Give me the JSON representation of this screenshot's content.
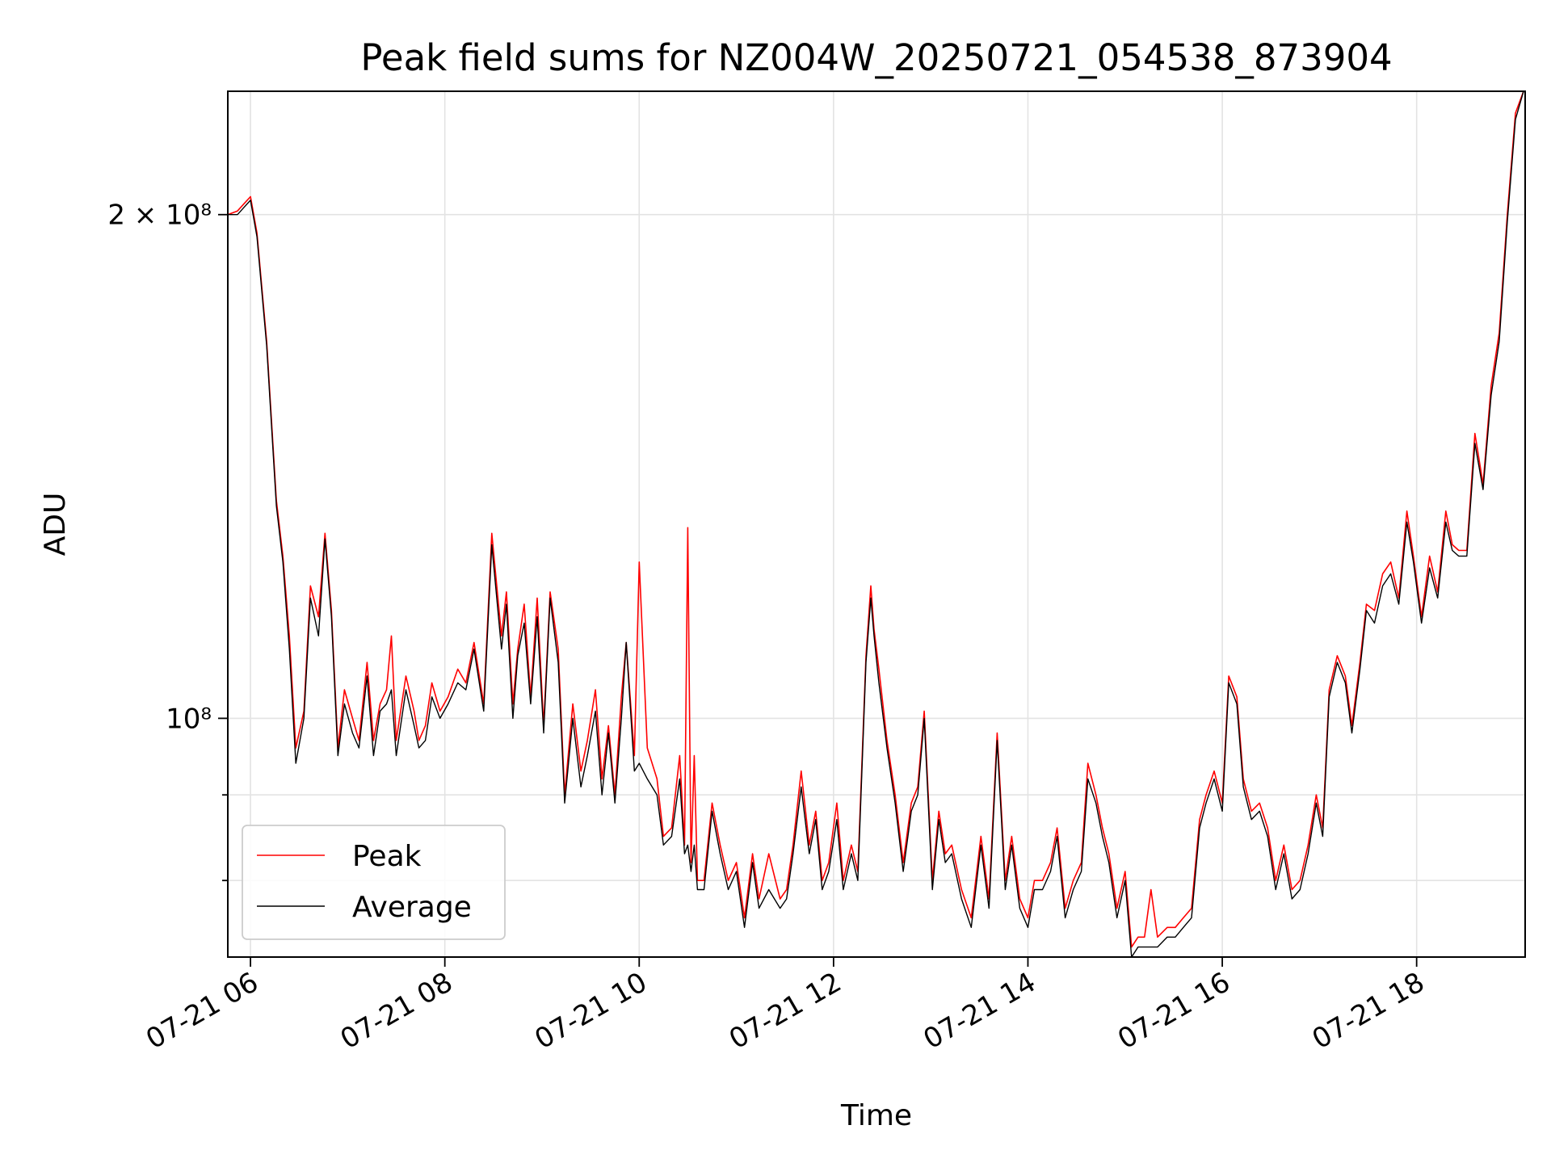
{
  "chart_data": {
    "type": "line",
    "title": "Peak field sums for NZ004W_20250721_054538_873904",
    "xlabel": "Time",
    "ylabel": "ADU",
    "yscale": "log",
    "ylim": [
      72000000,
      237000000
    ],
    "xlim": [
      "2025-07-21 05:46",
      "2025-07-21 19:07"
    ],
    "grid": true,
    "legend_position": "lower-left",
    "x_ticks": [
      "07-21 06",
      "07-21 08",
      "07-21 10",
      "07-21 12",
      "07-21 14",
      "07-21 16",
      "07-21 18"
    ],
    "y_ticks": [
      {
        "value": 200000000,
        "label": "2 × 10⁸"
      },
      {
        "value": 100000000,
        "label": "10⁸"
      }
    ],
    "y_minor_ticks": [
      60000000,
      70000000,
      80000000,
      90000000
    ],
    "series": [
      {
        "name": "Peak",
        "color": "#ff0000",
        "x": [
          "2025-07-21 05:46",
          "2025-07-21 05:52",
          "2025-07-21 05:56",
          "2025-07-21 06:00",
          "2025-07-21 06:04",
          "2025-07-21 06:10",
          "2025-07-21 06:16",
          "2025-07-21 06:20",
          "2025-07-21 06:24",
          "2025-07-21 06:28",
          "2025-07-21 06:33",
          "2025-07-21 06:37",
          "2025-07-21 06:42",
          "2025-07-21 06:46",
          "2025-07-21 06:50",
          "2025-07-21 06:54",
          "2025-07-21 06:58",
          "2025-07-21 07:03",
          "2025-07-21 07:07",
          "2025-07-21 07:12",
          "2025-07-21 07:16",
          "2025-07-21 07:20",
          "2025-07-21 07:24",
          "2025-07-21 07:27",
          "2025-07-21 07:30",
          "2025-07-21 07:36",
          "2025-07-21 07:41",
          "2025-07-21 07:44",
          "2025-07-21 07:48",
          "2025-07-21 07:52",
          "2025-07-21 07:57",
          "2025-07-21 08:02",
          "2025-07-21 08:08",
          "2025-07-21 08:13",
          "2025-07-21 08:18",
          "2025-07-21 08:24",
          "2025-07-21 08:29",
          "2025-07-21 08:35",
          "2025-07-21 08:38",
          "2025-07-21 08:42",
          "2025-07-21 08:45",
          "2025-07-21 08:49",
          "2025-07-21 08:53",
          "2025-07-21 08:57",
          "2025-07-21 09:01",
          "2025-07-21 09:05",
          "2025-07-21 09:10",
          "2025-07-21 09:14",
          "2025-07-21 09:19",
          "2025-07-21 09:24",
          "2025-07-21 09:28",
          "2025-07-21 09:33",
          "2025-07-21 09:37",
          "2025-07-21 09:41",
          "2025-07-21 09:45",
          "2025-07-21 09:49",
          "2025-07-21 09:52",
          "2025-07-21 09:57",
          "2025-07-21 10:00",
          "2025-07-21 10:05",
          "2025-07-21 10:11",
          "2025-07-21 10:15",
          "2025-07-21 10:20",
          "2025-07-21 10:25",
          "2025-07-21 10:28",
          "2025-07-21 10:30",
          "2025-07-21 10:32",
          "2025-07-21 10:34",
          "2025-07-21 10:36",
          "2025-07-21 10:40",
          "2025-07-21 10:45",
          "2025-07-21 10:50",
          "2025-07-21 10:55",
          "2025-07-21 11:00",
          "2025-07-21 11:05",
          "2025-07-21 11:10",
          "2025-07-21 11:14",
          "2025-07-21 11:20",
          "2025-07-21 11:27",
          "2025-07-21 11:31",
          "2025-07-21 11:35",
          "2025-07-21 11:40",
          "2025-07-21 11:45",
          "2025-07-21 11:49",
          "2025-07-21 11:53",
          "2025-07-21 11:57",
          "2025-07-21 12:02",
          "2025-07-21 12:06",
          "2025-07-21 12:11",
          "2025-07-21 12:15",
          "2025-07-21 12:20",
          "2025-07-21 12:23",
          "2025-07-21 12:25",
          "2025-07-21 12:28",
          "2025-07-21 12:33",
          "2025-07-21 12:38",
          "2025-07-21 12:43",
          "2025-07-21 12:48",
          "2025-07-21 12:52",
          "2025-07-21 12:56",
          "2025-07-21 13:01",
          "2025-07-21 13:05",
          "2025-07-21 13:09",
          "2025-07-21 13:13",
          "2025-07-21 13:19",
          "2025-07-21 13:25",
          "2025-07-21 13:31",
          "2025-07-21 13:36",
          "2025-07-21 13:41",
          "2025-07-21 13:46",
          "2025-07-21 13:50",
          "2025-07-21 13:55",
          "2025-07-21 14:00",
          "2025-07-21 14:04",
          "2025-07-21 14:09",
          "2025-07-21 14:14",
          "2025-07-21 14:18",
          "2025-07-21 14:23",
          "2025-07-21 14:28",
          "2025-07-21 14:33",
          "2025-07-21 14:37",
          "2025-07-21 14:42",
          "2025-07-21 14:46",
          "2025-07-21 14:50",
          "2025-07-21 14:55",
          "2025-07-21 15:00",
          "2025-07-21 15:04",
          "2025-07-21 15:08",
          "2025-07-21 15:12",
          "2025-07-21 15:16",
          "2025-07-21 15:20",
          "2025-07-21 15:26",
          "2025-07-21 15:31",
          "2025-07-21 15:36",
          "2025-07-21 15:41",
          "2025-07-21 15:46",
          "2025-07-21 15:50",
          "2025-07-21 15:55",
          "2025-07-21 16:00",
          "2025-07-21 16:04",
          "2025-07-21 16:09",
          "2025-07-21 16:13",
          "2025-07-21 16:18",
          "2025-07-21 16:23",
          "2025-07-21 16:28",
          "2025-07-21 16:33",
          "2025-07-21 16:38",
          "2025-07-21 16:43",
          "2025-07-21 16:48",
          "2025-07-21 16:53",
          "2025-07-21 16:58",
          "2025-07-21 17:02",
          "2025-07-21 17:06",
          "2025-07-21 17:11",
          "2025-07-21 17:16",
          "2025-07-21 17:20",
          "2025-07-21 17:25",
          "2025-07-21 17:29",
          "2025-07-21 17:34",
          "2025-07-21 17:39",
          "2025-07-21 17:44",
          "2025-07-21 17:49",
          "2025-07-21 17:54",
          "2025-07-21 17:58",
          "2025-07-21 18:03",
          "2025-07-21 18:08",
          "2025-07-21 18:13",
          "2025-07-21 18:18",
          "2025-07-21 18:22",
          "2025-07-21 18:26",
          "2025-07-21 18:31",
          "2025-07-21 18:36",
          "2025-07-21 18:41",
          "2025-07-21 18:46",
          "2025-07-21 18:51",
          "2025-07-21 18:56",
          "2025-07-21 19:01",
          "2025-07-21 19:06"
        ],
        "y": [
          200000000,
          201000000,
          203000000,
          205000000,
          195000000,
          168000000,
          135000000,
          125000000,
          112000000,
          96000000,
          101000000,
          120000000,
          115000000,
          129000000,
          116000000,
          96000000,
          104000000,
          100000000,
          97000000,
          108000000,
          97000000,
          102000000,
          104000000,
          112000000,
          97000000,
          106000000,
          101000000,
          97000000,
          99000000,
          105000000,
          101000000,
          103000000,
          107000000,
          105000000,
          111000000,
          102000000,
          129000000,
          112000000,
          119000000,
          102000000,
          110000000,
          117000000,
          103000000,
          118000000,
          99000000,
          119000000,
          110000000,
          90000000,
          102000000,
          93000000,
          97000000,
          104000000,
          92000000,
          99000000,
          90000000,
          103000000,
          111000000,
          95000000,
          124000000,
          96000000,
          92000000,
          85000000,
          86000000,
          95000000,
          84000000,
          130000000,
          82000000,
          95000000,
          80000000,
          80000000,
          89000000,
          84000000,
          80000000,
          82000000,
          76000000,
          83000000,
          78000000,
          83000000,
          78000000,
          79000000,
          84000000,
          93000000,
          84000000,
          88000000,
          80000000,
          82000000,
          89000000,
          80000000,
          84000000,
          81000000,
          109000000,
          120000000,
          113000000,
          107000000,
          97000000,
          90000000,
          82000000,
          89000000,
          91000000,
          101000000,
          80000000,
          88000000,
          83000000,
          84000000,
          79000000,
          76000000,
          85000000,
          78000000,
          98000000,
          80000000,
          85000000,
          78000000,
          76000000,
          80000000,
          80000000,
          82000000,
          86000000,
          77000000,
          80000000,
          82000000,
          94000000,
          90000000,
          86000000,
          83000000,
          77000000,
          81000000,
          73000000,
          74000000,
          74000000,
          79000000,
          74000000,
          75000000,
          75000000,
          76000000,
          77000000,
          87000000,
          90000000,
          93000000,
          89000000,
          106000000,
          103000000,
          92000000,
          88000000,
          89000000,
          86000000,
          80000000,
          84000000,
          79000000,
          80000000,
          84000000,
          90000000,
          86000000,
          104000000,
          109000000,
          106000000,
          99000000,
          108000000,
          117000000,
          116000000,
          122000000,
          124000000,
          118000000,
          133000000,
          125000000,
          115000000,
          125000000,
          119000000,
          133000000,
          127000000,
          126000000,
          126000000,
          148000000,
          138000000,
          158000000,
          170000000,
          200000000,
          230000000,
          237000000
        ]
      },
      {
        "name": "Average",
        "color": "#000000",
        "x": [
          "2025-07-21 05:46",
          "2025-07-21 05:52",
          "2025-07-21 05:56",
          "2025-07-21 06:00",
          "2025-07-21 06:04",
          "2025-07-21 06:10",
          "2025-07-21 06:16",
          "2025-07-21 06:20",
          "2025-07-21 06:24",
          "2025-07-21 06:28",
          "2025-07-21 06:33",
          "2025-07-21 06:37",
          "2025-07-21 06:42",
          "2025-07-21 06:46",
          "2025-07-21 06:50",
          "2025-07-21 06:54",
          "2025-07-21 06:58",
          "2025-07-21 07:03",
          "2025-07-21 07:07",
          "2025-07-21 07:12",
          "2025-07-21 07:16",
          "2025-07-21 07:20",
          "2025-07-21 07:24",
          "2025-07-21 07:27",
          "2025-07-21 07:30",
          "2025-07-21 07:36",
          "2025-07-21 07:41",
          "2025-07-21 07:44",
          "2025-07-21 07:48",
          "2025-07-21 07:52",
          "2025-07-21 07:57",
          "2025-07-21 08:02",
          "2025-07-21 08:08",
          "2025-07-21 08:13",
          "2025-07-21 08:18",
          "2025-07-21 08:24",
          "2025-07-21 08:29",
          "2025-07-21 08:35",
          "2025-07-21 08:38",
          "2025-07-21 08:42",
          "2025-07-21 08:45",
          "2025-07-21 08:49",
          "2025-07-21 08:53",
          "2025-07-21 08:57",
          "2025-07-21 09:01",
          "2025-07-21 09:05",
          "2025-07-21 09:10",
          "2025-07-21 09:14",
          "2025-07-21 09:19",
          "2025-07-21 09:24",
          "2025-07-21 09:28",
          "2025-07-21 09:33",
          "2025-07-21 09:37",
          "2025-07-21 09:41",
          "2025-07-21 09:45",
          "2025-07-21 09:49",
          "2025-07-21 09:52",
          "2025-07-21 09:57",
          "2025-07-21 10:00",
          "2025-07-21 10:05",
          "2025-07-21 10:11",
          "2025-07-21 10:15",
          "2025-07-21 10:20",
          "2025-07-21 10:25",
          "2025-07-21 10:28",
          "2025-07-21 10:30",
          "2025-07-21 10:32",
          "2025-07-21 10:34",
          "2025-07-21 10:36",
          "2025-07-21 10:40",
          "2025-07-21 10:45",
          "2025-07-21 10:50",
          "2025-07-21 10:55",
          "2025-07-21 11:00",
          "2025-07-21 11:05",
          "2025-07-21 11:10",
          "2025-07-21 11:14",
          "2025-07-21 11:20",
          "2025-07-21 11:27",
          "2025-07-21 11:31",
          "2025-07-21 11:35",
          "2025-07-21 11:40",
          "2025-07-21 11:45",
          "2025-07-21 11:49",
          "2025-07-21 11:53",
          "2025-07-21 11:57",
          "2025-07-21 12:02",
          "2025-07-21 12:06",
          "2025-07-21 12:11",
          "2025-07-21 12:15",
          "2025-07-21 12:20",
          "2025-07-21 12:23",
          "2025-07-21 12:25",
          "2025-07-21 12:28",
          "2025-07-21 12:33",
          "2025-07-21 12:38",
          "2025-07-21 12:43",
          "2025-07-21 12:48",
          "2025-07-21 12:52",
          "2025-07-21 12:56",
          "2025-07-21 13:01",
          "2025-07-21 13:05",
          "2025-07-21 13:09",
          "2025-07-21 13:13",
          "2025-07-21 13:19",
          "2025-07-21 13:25",
          "2025-07-21 13:31",
          "2025-07-21 13:36",
          "2025-07-21 13:41",
          "2025-07-21 13:46",
          "2025-07-21 13:50",
          "2025-07-21 13:55",
          "2025-07-21 14:00",
          "2025-07-21 14:04",
          "2025-07-21 14:09",
          "2025-07-21 14:14",
          "2025-07-21 14:18",
          "2025-07-21 14:23",
          "2025-07-21 14:28",
          "2025-07-21 14:33",
          "2025-07-21 14:37",
          "2025-07-21 14:42",
          "2025-07-21 14:46",
          "2025-07-21 14:50",
          "2025-07-21 14:55",
          "2025-07-21 15:00",
          "2025-07-21 15:04",
          "2025-07-21 15:08",
          "2025-07-21 15:12",
          "2025-07-21 15:16",
          "2025-07-21 15:20",
          "2025-07-21 15:26",
          "2025-07-21 15:31",
          "2025-07-21 15:36",
          "2025-07-21 15:41",
          "2025-07-21 15:46",
          "2025-07-21 15:50",
          "2025-07-21 15:55",
          "2025-07-21 16:00",
          "2025-07-21 16:04",
          "2025-07-21 16:09",
          "2025-07-21 16:13",
          "2025-07-21 16:18",
          "2025-07-21 16:23",
          "2025-07-21 16:28",
          "2025-07-21 16:33",
          "2025-07-21 16:38",
          "2025-07-21 16:43",
          "2025-07-21 16:48",
          "2025-07-21 16:53",
          "2025-07-21 16:58",
          "2025-07-21 17:02",
          "2025-07-21 17:06",
          "2025-07-21 17:11",
          "2025-07-21 17:16",
          "2025-07-21 17:20",
          "2025-07-21 17:25",
          "2025-07-21 17:29",
          "2025-07-21 17:34",
          "2025-07-21 17:39",
          "2025-07-21 17:44",
          "2025-07-21 17:49",
          "2025-07-21 17:54",
          "2025-07-21 17:58",
          "2025-07-21 18:03",
          "2025-07-21 18:08",
          "2025-07-21 18:13",
          "2025-07-21 18:18",
          "2025-07-21 18:22",
          "2025-07-21 18:26",
          "2025-07-21 18:31",
          "2025-07-21 18:36",
          "2025-07-21 18:41",
          "2025-07-21 18:46",
          "2025-07-21 18:51",
          "2025-07-21 18:56",
          "2025-07-21 19:01",
          "2025-07-21 19:06"
        ],
        "y": [
          200000000,
          200000000,
          202000000,
          204000000,
          194000000,
          167000000,
          134000000,
          124000000,
          110000000,
          94000000,
          100000000,
          118000000,
          112000000,
          128000000,
          115000000,
          95000000,
          102000000,
          98000000,
          96000000,
          106000000,
          95000000,
          101000000,
          102000000,
          104000000,
          95000000,
          104000000,
          99000000,
          96000000,
          97000000,
          103000000,
          100000000,
          102000000,
          105000000,
          104000000,
          110000000,
          101000000,
          127000000,
          110000000,
          117000000,
          100000000,
          109000000,
          114000000,
          102000000,
          115000000,
          98000000,
          118000000,
          108000000,
          89000000,
          100000000,
          91000000,
          95000000,
          101000000,
          90000000,
          98000000,
          89000000,
          100000000,
          111000000,
          93000000,
          94000000,
          92000000,
          90000000,
          84000000,
          85000000,
          92000000,
          83000000,
          84000000,
          81000000,
          84000000,
          79000000,
          79000000,
          88000000,
          83000000,
          79000000,
          81000000,
          75000000,
          82000000,
          77000000,
          79000000,
          77000000,
          78000000,
          83000000,
          91000000,
          83000000,
          87000000,
          79000000,
          81000000,
          87000000,
          79000000,
          83000000,
          80000000,
          108000000,
          118000000,
          112000000,
          105000000,
          96000000,
          89000000,
          81000000,
          88000000,
          90000000,
          100000000,
          79000000,
          87000000,
          82000000,
          83000000,
          78000000,
          75000000,
          84000000,
          77000000,
          97000000,
          79000000,
          84000000,
          77000000,
          75000000,
          79000000,
          79000000,
          81000000,
          85000000,
          76000000,
          79000000,
          81000000,
          92000000,
          89000000,
          85000000,
          82000000,
          76000000,
          80000000,
          72000000,
          73000000,
          73000000,
          73000000,
          73000000,
          74000000,
          74000000,
          75000000,
          76000000,
          86000000,
          89000000,
          92000000,
          88000000,
          105000000,
          102000000,
          91000000,
          87000000,
          88000000,
          85000000,
          79000000,
          83000000,
          78000000,
          79000000,
          83000000,
          89000000,
          85000000,
          103000000,
          108000000,
          105000000,
          98000000,
          107000000,
          116000000,
          114000000,
          120000000,
          122000000,
          117000000,
          131000000,
          124000000,
          114000000,
          123000000,
          118000000,
          131000000,
          126000000,
          125000000,
          125000000,
          146000000,
          137000000,
          156000000,
          168000000,
          198000000,
          228000000,
          237000000
        ]
      }
    ]
  }
}
